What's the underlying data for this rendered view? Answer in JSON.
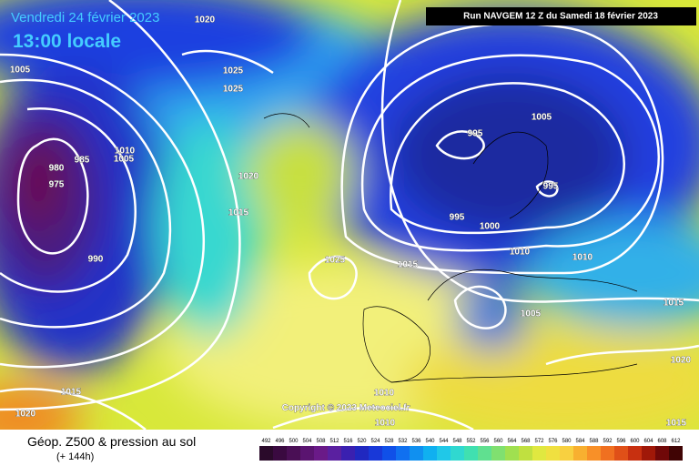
{
  "header": {
    "date": "Vendredi 24 février 2023",
    "time": "13:00 locale",
    "run": "Run NAVGEM 12 Z du Samedi 18 février 2023"
  },
  "copyright": "Copyright © 2023 Meteociel.fr",
  "footer": {
    "title": "Géop. Z500 & pression au sol",
    "lead": "(+ 144h)"
  },
  "colorbar": {
    "labels": [
      "492",
      "496",
      "500",
      "504",
      "508",
      "512",
      "516",
      "520",
      "524",
      "528",
      "532",
      "536",
      "540",
      "544",
      "548",
      "552",
      "556",
      "560",
      "564",
      "568",
      "572",
      "576",
      "580",
      "584",
      "588",
      "592",
      "596",
      "600",
      "604",
      "608",
      "612"
    ]
  },
  "isobars": [
    "1020",
    "1005",
    "1025",
    "1025",
    "985",
    "1010",
    "1005",
    "980",
    "975",
    "990",
    "1020",
    "1015",
    "1025",
    "1015",
    "995",
    "1005",
    "995",
    "995",
    "1000",
    "1010",
    "1010",
    "1015",
    "1005",
    "1020",
    "1015",
    "1010",
    "1010",
    "1020",
    "1015"
  ]
}
